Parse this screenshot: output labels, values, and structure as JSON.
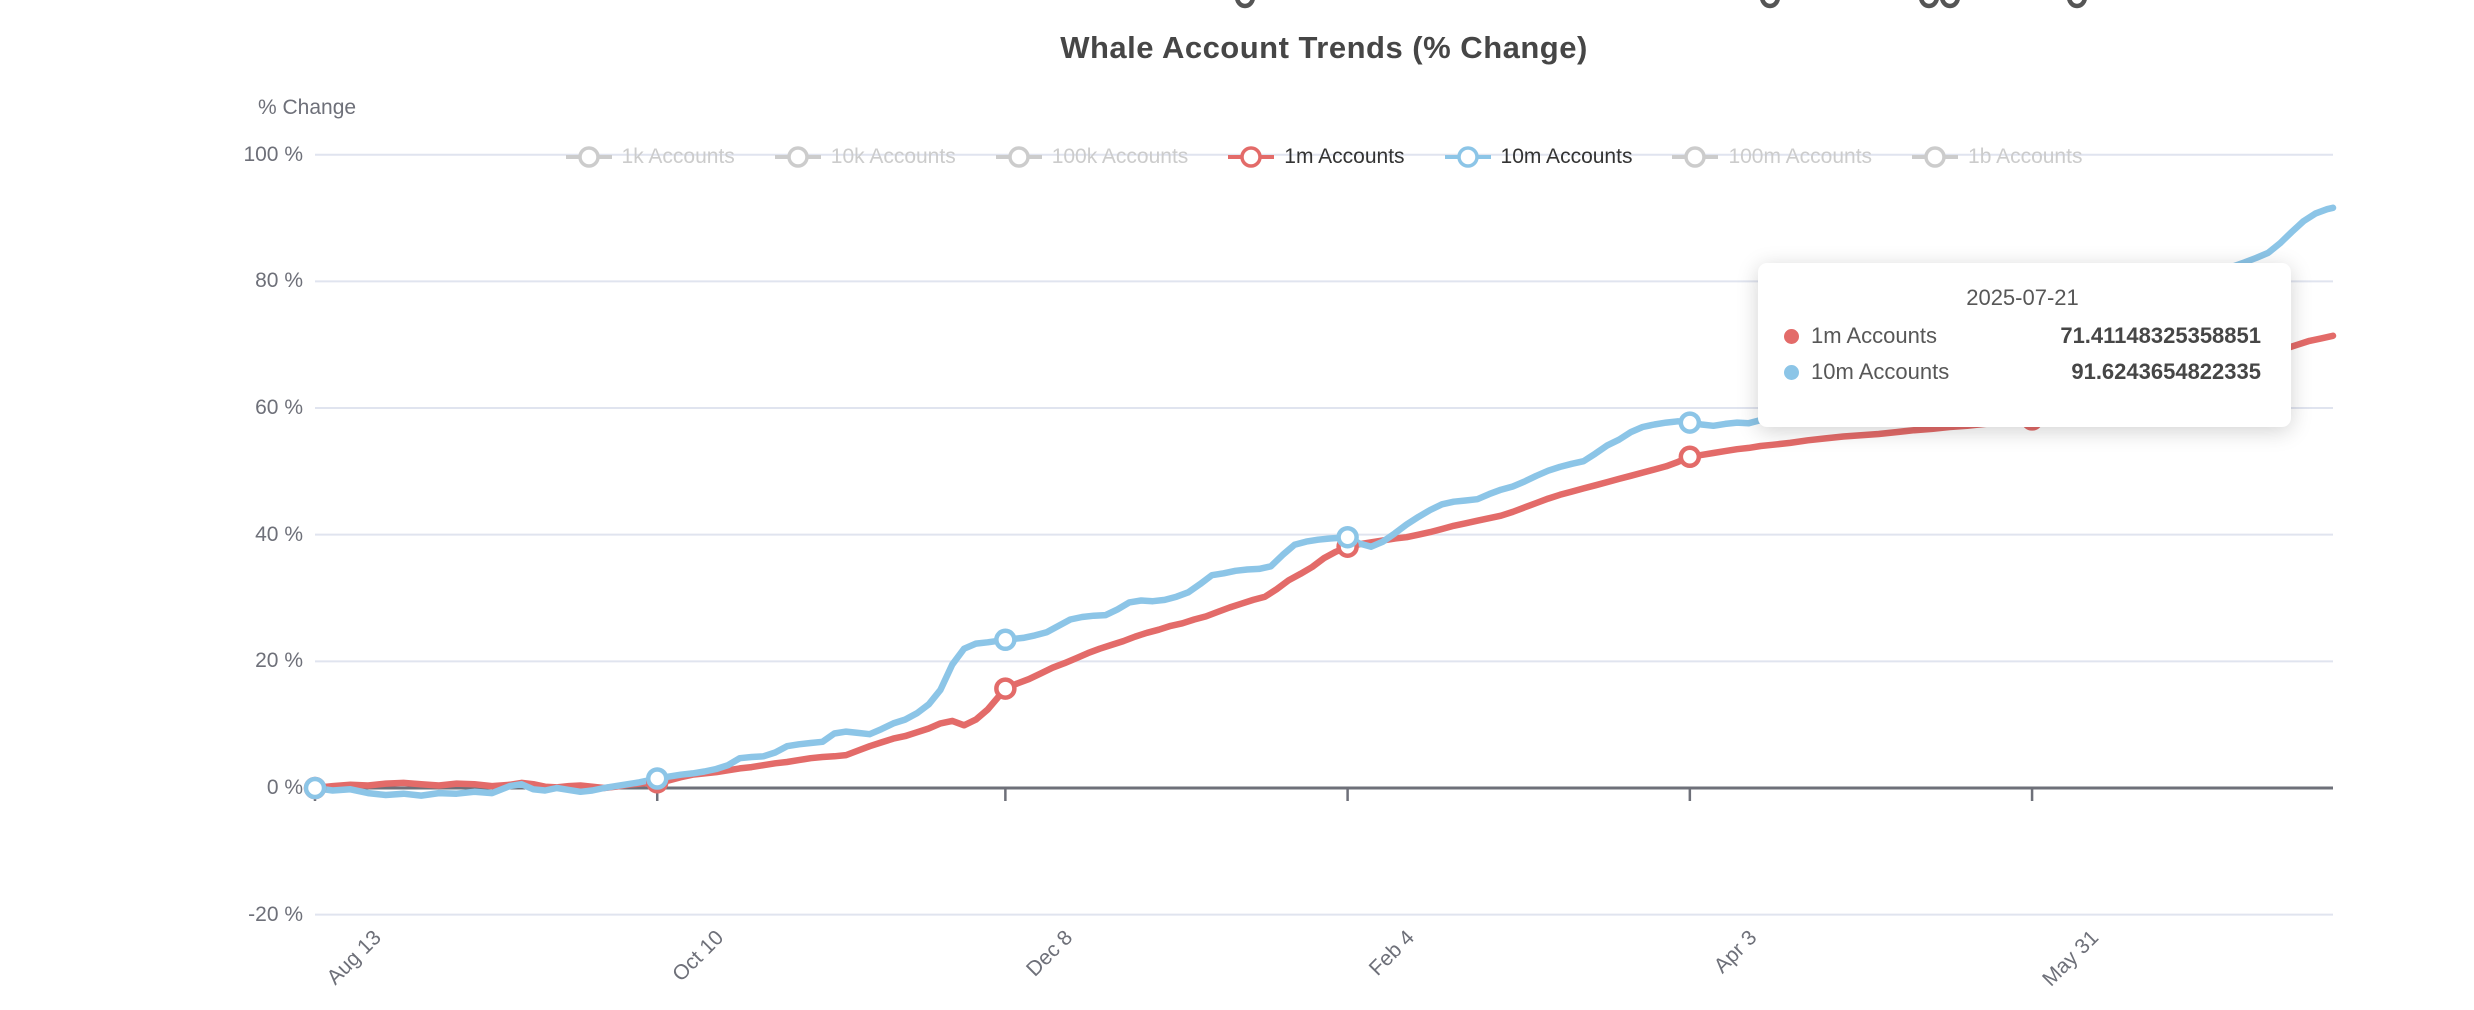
{
  "chart_data": {
    "type": "line",
    "title": "Whale Account Trends (% Change)",
    "xlabel": "",
    "ylabel": "% Change",
    "ylim": [
      -20,
      100
    ],
    "grid": true,
    "legend_position": "top",
    "y_tick_labels": [
      "100 %",
      "80 %",
      "60 %",
      "40 %",
      "20 %",
      "0 %",
      "-20 %"
    ],
    "y_tick_values": [
      100,
      80,
      60,
      40,
      20,
      0,
      -20
    ],
    "x_tick_labels": [
      "Aug 13",
      "Oct 10",
      "Dec 8",
      "Feb 4",
      "Apr 3",
      "May 31"
    ],
    "x_tick_days": [
      0,
      58,
      117,
      175,
      233,
      291
    ],
    "x_total_days": 342,
    "marker_days": [
      0,
      58,
      117,
      175,
      233,
      291
    ],
    "legend": [
      {
        "label": "1k Accounts",
        "active": false
      },
      {
        "label": "10k Accounts",
        "active": false
      },
      {
        "label": "100k Accounts",
        "active": false
      },
      {
        "label": "1m Accounts",
        "active": true,
        "color": "#E36B69"
      },
      {
        "label": "10m Accounts",
        "active": true,
        "color": "#8CC5E7"
      },
      {
        "label": "100m Accounts",
        "active": false
      },
      {
        "label": "1b Accounts",
        "active": false
      }
    ],
    "colors": {
      "red": "#E36B69",
      "blue": "#8CC5E7",
      "inactive": "#cccccc",
      "grid": "#E0E4EF",
      "axis": "#6E7079",
      "axis_text": "#6E7079",
      "title_text": "#464646"
    },
    "series": [
      {
        "name": "1m Accounts",
        "color": "#E36B69",
        "points": [
          [
            0,
            0
          ],
          [
            3,
            0.3
          ],
          [
            6,
            0.5
          ],
          [
            9,
            0.4
          ],
          [
            12,
            0.7
          ],
          [
            15,
            0.8
          ],
          [
            18,
            0.6
          ],
          [
            21,
            0.4
          ],
          [
            24,
            0.7
          ],
          [
            27,
            0.6
          ],
          [
            30,
            0.3
          ],
          [
            33,
            0.5
          ],
          [
            35,
            0.8
          ],
          [
            37,
            0.6
          ],
          [
            39,
            0.2
          ],
          [
            41,
            0.1
          ],
          [
            43,
            0.3
          ],
          [
            45,
            0.4
          ],
          [
            47,
            0.2
          ],
          [
            49,
            0
          ],
          [
            51,
            0.2
          ],
          [
            53,
            0.5
          ],
          [
            55,
            0.7
          ],
          [
            58,
            0.9
          ],
          [
            60,
            1.2
          ],
          [
            62,
            1.7
          ],
          [
            64,
            2.1
          ],
          [
            66,
            2.3
          ],
          [
            68,
            2.5
          ],
          [
            70,
            2.8
          ],
          [
            72,
            3.1
          ],
          [
            74,
            3.3
          ],
          [
            76,
            3.6
          ],
          [
            78,
            3.9
          ],
          [
            80,
            4.1
          ],
          [
            82,
            4.4
          ],
          [
            84,
            4.7
          ],
          [
            86,
            4.9
          ],
          [
            88,
            5.0
          ],
          [
            90,
            5.2
          ],
          [
            92,
            5.9
          ],
          [
            94,
            6.6
          ],
          [
            96,
            7.2
          ],
          [
            98,
            7.8
          ],
          [
            100,
            8.2
          ],
          [
            102,
            8.8
          ],
          [
            104,
            9.4
          ],
          [
            106,
            10.2
          ],
          [
            108,
            10.6
          ],
          [
            110,
            9.9
          ],
          [
            112,
            10.8
          ],
          [
            114,
            12.4
          ],
          [
            117,
            15.7
          ],
          [
            119,
            16.5
          ],
          [
            121,
            17.2
          ],
          [
            123,
            18.1
          ],
          [
            125,
            19.0
          ],
          [
            127,
            19.7
          ],
          [
            129,
            20.5
          ],
          [
            131,
            21.3
          ],
          [
            133,
            22.0
          ],
          [
            135,
            22.6
          ],
          [
            137,
            23.2
          ],
          [
            139,
            23.9
          ],
          [
            141,
            24.5
          ],
          [
            143,
            25.0
          ],
          [
            145,
            25.6
          ],
          [
            147,
            26.0
          ],
          [
            149,
            26.6
          ],
          [
            151,
            27.1
          ],
          [
            153,
            27.8
          ],
          [
            155,
            28.5
          ],
          [
            157,
            29.1
          ],
          [
            159,
            29.7
          ],
          [
            161,
            30.2
          ],
          [
            163,
            31.4
          ],
          [
            165,
            32.8
          ],
          [
            167,
            33.8
          ],
          [
            169,
            34.9
          ],
          [
            171,
            36.3
          ],
          [
            173,
            37.3
          ],
          [
            175,
            38.1
          ],
          [
            177,
            38.5
          ],
          [
            179,
            38.8
          ],
          [
            181,
            39.1
          ],
          [
            183,
            39.4
          ],
          [
            185,
            39.6
          ],
          [
            187,
            40.0
          ],
          [
            189,
            40.4
          ],
          [
            191,
            40.9
          ],
          [
            193,
            41.4
          ],
          [
            195,
            41.8
          ],
          [
            197,
            42.2
          ],
          [
            199,
            42.6
          ],
          [
            201,
            43.0
          ],
          [
            203,
            43.6
          ],
          [
            205,
            44.3
          ],
          [
            207,
            45.0
          ],
          [
            209,
            45.7
          ],
          [
            211,
            46.3
          ],
          [
            213,
            46.8
          ],
          [
            215,
            47.3
          ],
          [
            217,
            47.8
          ],
          [
            219,
            48.3
          ],
          [
            221,
            48.8
          ],
          [
            223,
            49.3
          ],
          [
            225,
            49.8
          ],
          [
            227,
            50.3
          ],
          [
            229,
            50.8
          ],
          [
            231,
            51.5
          ],
          [
            233,
            52.3
          ],
          [
            235,
            52.6
          ],
          [
            237,
            52.9
          ],
          [
            239,
            53.2
          ],
          [
            241,
            53.5
          ],
          [
            243,
            53.7
          ],
          [
            245,
            54.0
          ],
          [
            247,
            54.2
          ],
          [
            250,
            54.5
          ],
          [
            253,
            54.9
          ],
          [
            256,
            55.2
          ],
          [
            259,
            55.5
          ],
          [
            262,
            55.7
          ],
          [
            265,
            55.9
          ],
          [
            268,
            56.2
          ],
          [
            271,
            56.5
          ],
          [
            274,
            56.7
          ],
          [
            277,
            57.0
          ],
          [
            280,
            57.2
          ],
          [
            283,
            57.5
          ],
          [
            286,
            57.7
          ],
          [
            289,
            58.0
          ],
          [
            291,
            58.2
          ],
          [
            294,
            58.7
          ],
          [
            297,
            59.1
          ],
          [
            300,
            59.6
          ],
          [
            303,
            60.2
          ],
          [
            306,
            60.8
          ],
          [
            309,
            61.5
          ],
          [
            312,
            62.2
          ],
          [
            315,
            63.0
          ],
          [
            318,
            63.9
          ],
          [
            321,
            64.8
          ],
          [
            324,
            65.8
          ],
          [
            327,
            66.9
          ],
          [
            330,
            68.0
          ],
          [
            333,
            69.1
          ],
          [
            336,
            70.0
          ],
          [
            338,
            70.6
          ],
          [
            340,
            71.0
          ],
          [
            342,
            71.41
          ]
        ]
      },
      {
        "name": "10m Accounts",
        "color": "#8CC5E7",
        "points": [
          [
            0,
            0
          ],
          [
            3,
            -0.4
          ],
          [
            6,
            -0.2
          ],
          [
            9,
            -0.8
          ],
          [
            12,
            -1.1
          ],
          [
            15,
            -0.9
          ],
          [
            18,
            -1.2
          ],
          [
            21,
            -0.8
          ],
          [
            24,
            -0.9
          ],
          [
            27,
            -0.6
          ],
          [
            30,
            -0.8
          ],
          [
            33,
            0.3
          ],
          [
            35,
            0.6
          ],
          [
            37,
            -0.2
          ],
          [
            39,
            -0.4
          ],
          [
            41,
            0
          ],
          [
            43,
            -0.3
          ],
          [
            45,
            -0.6
          ],
          [
            47,
            -0.4
          ],
          [
            49,
            0
          ],
          [
            51,
            0.3
          ],
          [
            53,
            0.6
          ],
          [
            55,
            0.9
          ],
          [
            58,
            1.5
          ],
          [
            60,
            1.8
          ],
          [
            62,
            2.1
          ],
          [
            64,
            2.3
          ],
          [
            66,
            2.6
          ],
          [
            68,
            3.0
          ],
          [
            70,
            3.6
          ],
          [
            72,
            4.7
          ],
          [
            74,
            4.9
          ],
          [
            76,
            5.0
          ],
          [
            78,
            5.6
          ],
          [
            80,
            6.6
          ],
          [
            82,
            6.9
          ],
          [
            84,
            7.1
          ],
          [
            86,
            7.3
          ],
          [
            88,
            8.6
          ],
          [
            90,
            8.9
          ],
          [
            92,
            8.7
          ],
          [
            94,
            8.5
          ],
          [
            96,
            9.3
          ],
          [
            98,
            10.2
          ],
          [
            100,
            10.8
          ],
          [
            102,
            11.8
          ],
          [
            104,
            13.2
          ],
          [
            106,
            15.5
          ],
          [
            108,
            19.5
          ],
          [
            110,
            22.0
          ],
          [
            112,
            22.8
          ],
          [
            114,
            23.0
          ],
          [
            117,
            23.4
          ],
          [
            120,
            23.7
          ],
          [
            122,
            24.1
          ],
          [
            124,
            24.6
          ],
          [
            126,
            25.6
          ],
          [
            128,
            26.6
          ],
          [
            130,
            27.0
          ],
          [
            132,
            27.2
          ],
          [
            134,
            27.3
          ],
          [
            136,
            28.2
          ],
          [
            138,
            29.3
          ],
          [
            140,
            29.6
          ],
          [
            142,
            29.5
          ],
          [
            144,
            29.7
          ],
          [
            146,
            30.2
          ],
          [
            148,
            30.9
          ],
          [
            150,
            32.2
          ],
          [
            152,
            33.6
          ],
          [
            154,
            33.9
          ],
          [
            156,
            34.3
          ],
          [
            158,
            34.5
          ],
          [
            160,
            34.6
          ],
          [
            162,
            35.0
          ],
          [
            164,
            36.8
          ],
          [
            166,
            38.4
          ],
          [
            168,
            38.9
          ],
          [
            170,
            39.2
          ],
          [
            172,
            39.4
          ],
          [
            175,
            39.6
          ],
          [
            177,
            38.6
          ],
          [
            179,
            38.1
          ],
          [
            181,
            38.9
          ],
          [
            183,
            40.2
          ],
          [
            185,
            41.6
          ],
          [
            187,
            42.8
          ],
          [
            189,
            43.9
          ],
          [
            191,
            44.8
          ],
          [
            193,
            45.2
          ],
          [
            195,
            45.4
          ],
          [
            197,
            45.6
          ],
          [
            199,
            46.4
          ],
          [
            201,
            47.1
          ],
          [
            203,
            47.6
          ],
          [
            205,
            48.4
          ],
          [
            207,
            49.3
          ],
          [
            209,
            50.1
          ],
          [
            211,
            50.7
          ],
          [
            213,
            51.2
          ],
          [
            215,
            51.6
          ],
          [
            217,
            52.8
          ],
          [
            219,
            54.1
          ],
          [
            221,
            55.0
          ],
          [
            223,
            56.2
          ],
          [
            225,
            57.0
          ],
          [
            227,
            57.4
          ],
          [
            229,
            57.7
          ],
          [
            231,
            57.9
          ],
          [
            233,
            57.7
          ],
          [
            235,
            57.4
          ],
          [
            237,
            57.2
          ],
          [
            239,
            57.5
          ],
          [
            241,
            57.7
          ],
          [
            243,
            57.6
          ],
          [
            245,
            58.1
          ],
          [
            247,
            58.4
          ],
          [
            250,
            59.0
          ],
          [
            253,
            59.6
          ],
          [
            256,
            60.3
          ],
          [
            259,
            61.2
          ],
          [
            262,
            62.0
          ],
          [
            265,
            62.6
          ],
          [
            268,
            63.4
          ],
          [
            271,
            64.3
          ],
          [
            274,
            65.0
          ],
          [
            277,
            65.9
          ],
          [
            280,
            66.8
          ],
          [
            283,
            67.6
          ],
          [
            286,
            68.4
          ],
          [
            289,
            69.3
          ],
          [
            291,
            70.0
          ],
          [
            294,
            71.0
          ],
          [
            297,
            71.9
          ],
          [
            300,
            72.9
          ],
          [
            303,
            74.0
          ],
          [
            306,
            75.0
          ],
          [
            309,
            76.2
          ],
          [
            312,
            77.3
          ],
          [
            315,
            78.5
          ],
          [
            318,
            79.7
          ],
          [
            321,
            80.9
          ],
          [
            324,
            82.0
          ],
          [
            327,
            83.0
          ],
          [
            329,
            83.7
          ],
          [
            331,
            84.5
          ],
          [
            333,
            86.0
          ],
          [
            335,
            87.8
          ],
          [
            337,
            89.5
          ],
          [
            339,
            90.7
          ],
          [
            341,
            91.4
          ],
          [
            342,
            91.62
          ]
        ]
      }
    ],
    "tooltip": {
      "date": "2025-07-21",
      "rows": [
        {
          "name": "1m Accounts",
          "value": "71.41148325358851",
          "color": "#E36B69"
        },
        {
          "name": "10m Accounts",
          "value": "91.6243654822335",
          "color": "#8CC5E7"
        }
      ]
    }
  }
}
